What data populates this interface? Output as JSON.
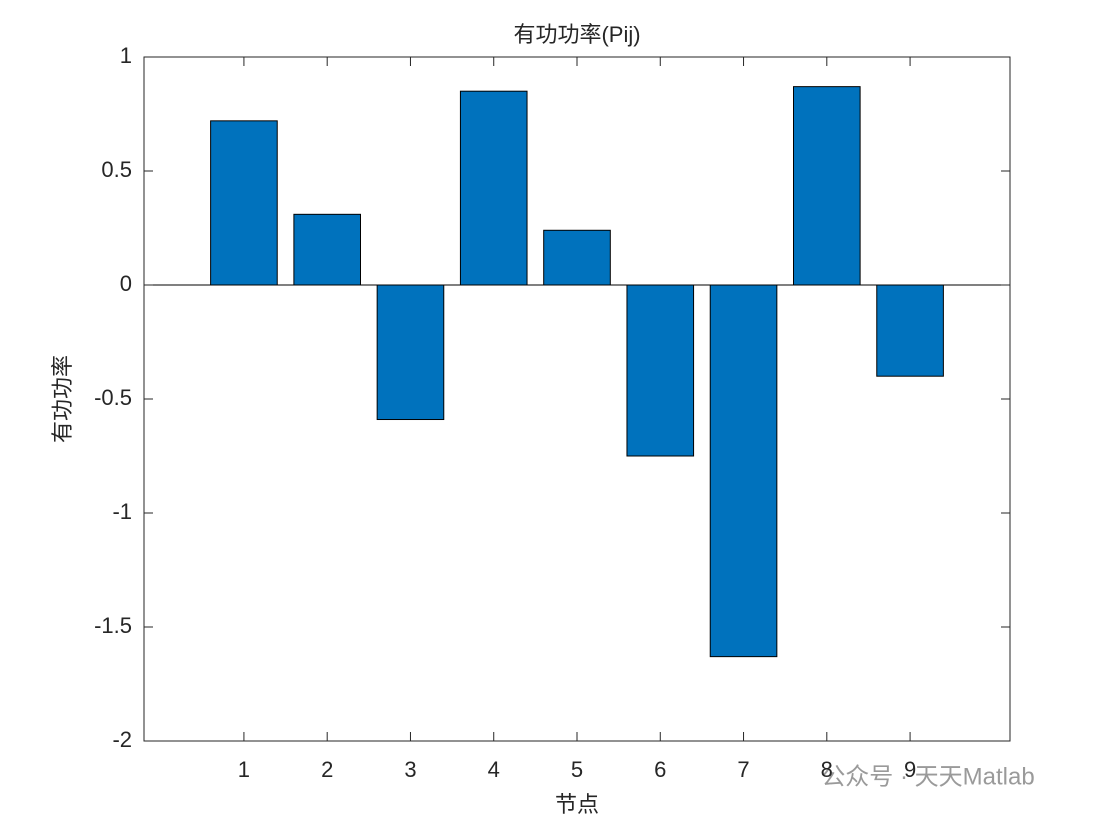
{
  "chart_data": {
    "type": "bar",
    "title": "有功功率(Pij)",
    "x_label": "节点",
    "y_label": "有功功率",
    "x": [
      1,
      2,
      3,
      4,
      5,
      6,
      7,
      8,
      9
    ],
    "values": [
      0.72,
      0.31,
      -0.59,
      0.85,
      0.24,
      -0.75,
      -1.63,
      0.87,
      -0.4
    ],
    "color": "#0072bd",
    "xlim": [
      -0.2,
      10.2
    ],
    "xticks": [
      1,
      2,
      3,
      4,
      5,
      6,
      7,
      8,
      9
    ],
    "ylim": [
      -2,
      1
    ],
    "yticks": [
      -2,
      -1.5,
      -1,
      -0.5,
      0,
      0.5,
      1
    ],
    "grid": false,
    "watermark": "公众号 · 天天Matlab"
  }
}
